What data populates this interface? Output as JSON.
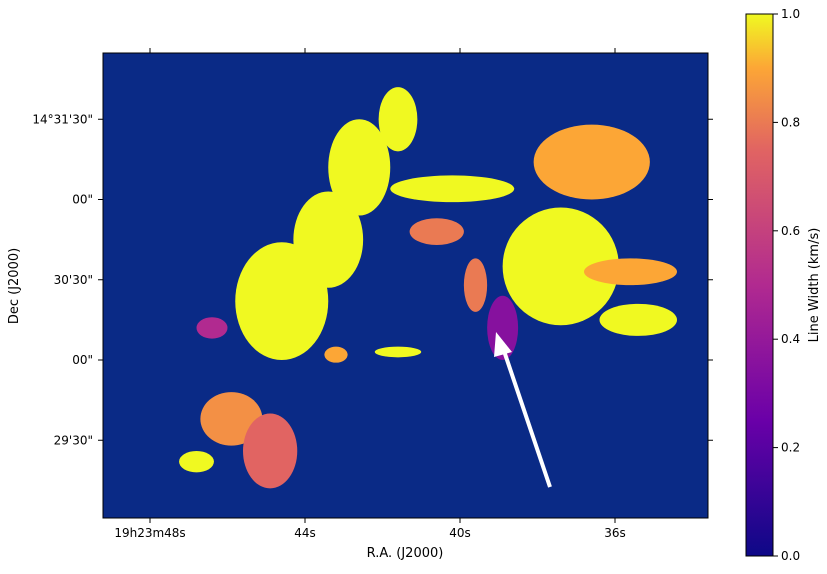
{
  "chart_data": {
    "type": "heatmap",
    "title": "",
    "xlabel": "R.A. (J2000)",
    "ylabel": "Dec (J2000)",
    "x_ticks": [
      {
        "label": "19h23m48s",
        "ra_seconds": 48
      },
      {
        "label": "44s",
        "ra_seconds": 44
      },
      {
        "label": "40s",
        "ra_seconds": 40
      },
      {
        "label": "36s",
        "ra_seconds": 36
      }
    ],
    "y_ticks": [
      {
        "label": "14°31'30\"",
        "dec_arcsec": 90
      },
      {
        "label": "00\"",
        "dec_arcsec": 60
      },
      {
        "label": "30'30\"",
        "dec_arcsec": 30
      },
      {
        "label": "00\"",
        "dec_arcsec": 0
      },
      {
        "label": "29'30\"",
        "dec_arcsec": -30
      }
    ],
    "colorbar": {
      "label": "Line Width (km/s)",
      "range": [
        0.0,
        1.0
      ],
      "ticks": [
        "0.0",
        "0.2",
        "0.4",
        "0.6",
        "0.8",
        "1.0"
      ],
      "colormap": "plasma"
    },
    "background_value": 0.0,
    "annotation": {
      "type": "arrow",
      "color": "#ffffff",
      "points_to": "low line-width filament near R.A. 39s, Dec 30'10\""
    },
    "regions": [
      {
        "ra": 46.8,
        "dec": -38,
        "rx": 0.45,
        "ry": 4,
        "value": 1.0
      },
      {
        "ra": 45.9,
        "dec": -22,
        "rx": 0.8,
        "ry": 10,
        "value": 0.85
      },
      {
        "ra": 44.9,
        "dec": -34,
        "rx": 0.7,
        "ry": 14,
        "value": 0.75
      },
      {
        "ra": 46.4,
        "dec": 12,
        "rx": 0.4,
        "ry": 4,
        "value": 0.5
      },
      {
        "ra": 44.6,
        "dec": 22,
        "rx": 1.2,
        "ry": 22,
        "value": 1.0
      },
      {
        "ra": 43.4,
        "dec": 45,
        "rx": 0.9,
        "ry": 18,
        "value": 1.0
      },
      {
        "ra": 42.6,
        "dec": 72,
        "rx": 0.8,
        "ry": 18,
        "value": 1.0
      },
      {
        "ra": 41.6,
        "dec": 90,
        "rx": 0.5,
        "ry": 12,
        "value": 1.0
      },
      {
        "ra": 40.2,
        "dec": 64,
        "rx": 1.6,
        "ry": 5,
        "value": 1.0
      },
      {
        "ra": 36.6,
        "dec": 74,
        "rx": 1.5,
        "ry": 14,
        "value": 0.9
      },
      {
        "ra": 37.4,
        "dec": 35,
        "rx": 1.5,
        "ry": 22,
        "value": 1.0
      },
      {
        "ra": 35.6,
        "dec": 33,
        "rx": 1.2,
        "ry": 5,
        "value": 0.9
      },
      {
        "ra": 35.4,
        "dec": 15,
        "rx": 1.0,
        "ry": 6,
        "value": 1.0
      },
      {
        "ra": 38.9,
        "dec": 12,
        "rx": 0.4,
        "ry": 12,
        "value": 0.35
      },
      {
        "ra": 39.6,
        "dec": 28,
        "rx": 0.3,
        "ry": 10,
        "value": 0.8
      },
      {
        "ra": 40.6,
        "dec": 48,
        "rx": 0.7,
        "ry": 5,
        "value": 0.8
      },
      {
        "ra": 43.2,
        "dec": 2,
        "rx": 0.3,
        "ry": 3,
        "value": 0.9
      },
      {
        "ra": 41.6,
        "dec": 3,
        "rx": 0.6,
        "ry": 2,
        "value": 1.0
      }
    ]
  }
}
